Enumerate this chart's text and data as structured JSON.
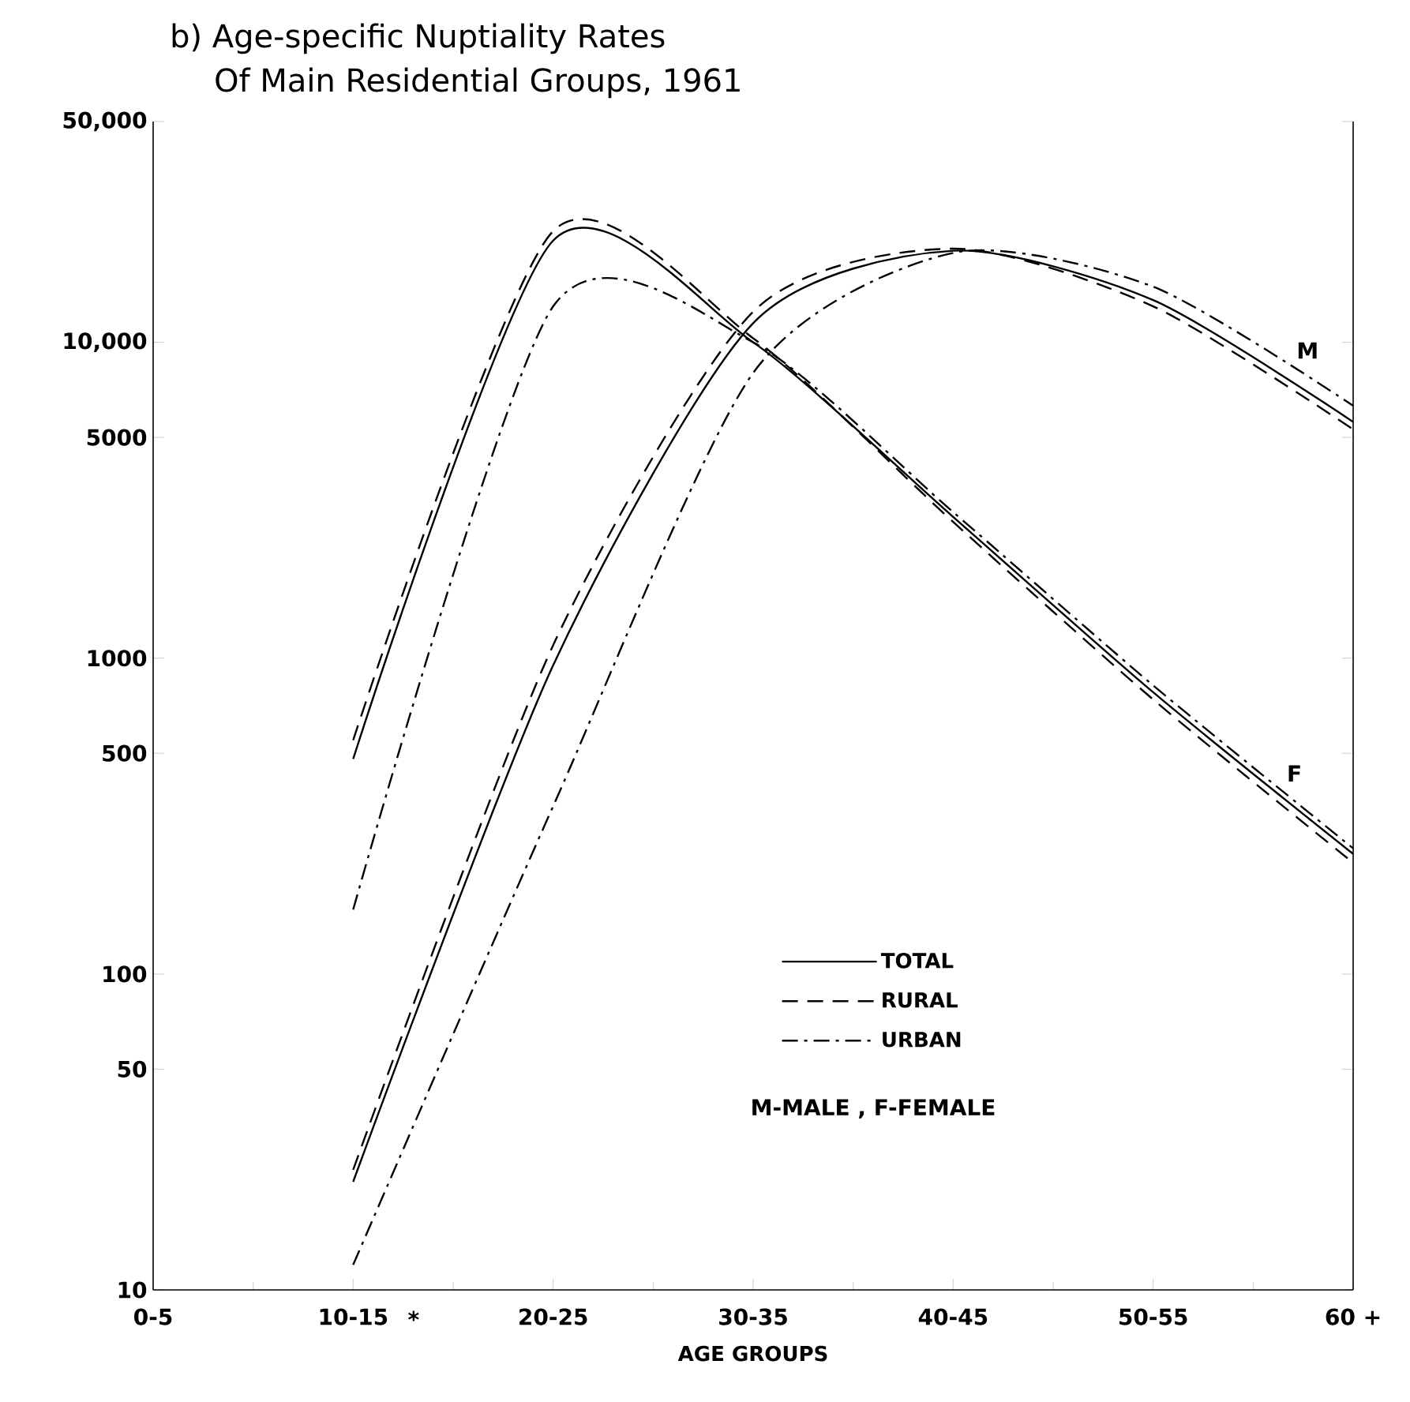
{
  "chart_data": {
    "type": "line",
    "title": "b) Age-specific Nuptiality Rates",
    "subtitle": "Of Main Residential Groups, 1961",
    "xlabel": "AGE GROUPS",
    "log": "y",
    "ylim": [
      10,
      50000
    ],
    "categories": [
      "0-5",
      "10-15",
      "20-25",
      "30-35",
      "40-45",
      "50-55",
      "60 +"
    ],
    "yticks": [
      10,
      50,
      100,
      500,
      1000,
      5000,
      {
        "value": 10000,
        "label": "10,000"
      },
      {
        "value": 50000,
        "label": "50,000"
      }
    ],
    "legend": "bottom",
    "marker": "none",
    "series": [
      {
        "name": "TOTAL",
        "color": "#000000",
        "line_style": "solid",
        "values": [
          null,
          22,
          950,
          11500,
          19500,
          13600,
          5600
        ]
      },
      {
        "name": "RURAL",
        "color": "#000000",
        "line_style": "dashed",
        "values": [
          null,
          24,
          1100,
          12500,
          19800,
          13000,
          5300
        ]
      },
      {
        "name": "URBAN",
        "color": "#000000",
        "line_style": "dashdot",
        "values": [
          null,
          12,
          340,
          8000,
          19200,
          15000,
          6300
        ]
      },
      {
        "color": "#000000",
        "line_style": "solid",
        "values": [
          null,
          480,
          21000,
          10000,
          2800,
          780,
          240
        ]
      },
      {
        "color": "#000000",
        "line_style": "dashed",
        "values": [
          null,
          550,
          22500,
          10300,
          2700,
          740,
          225
        ]
      },
      {
        "color": "#000000",
        "line_style": "dashdot",
        "values": [
          null,
          160,
          13000,
          10000,
          2900,
          820,
          250
        ]
      }
    ],
    "annotations": [
      "M",
      "F",
      "M-MALE , F-FEMALE",
      "*"
    ]
  }
}
